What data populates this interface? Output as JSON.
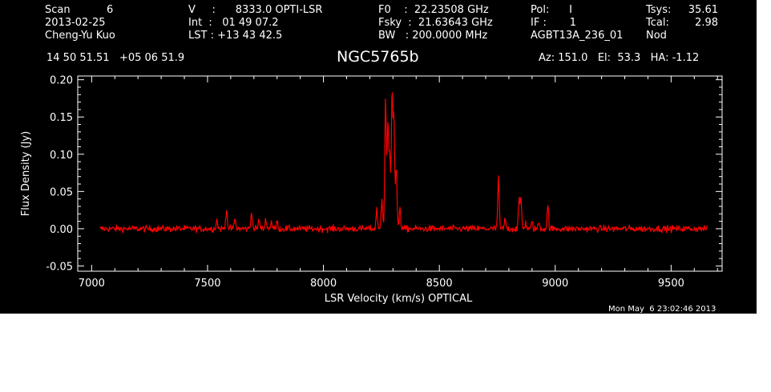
{
  "header": {
    "col1": [
      "Scan           6",
      "2013-02-25",
      "Cheng-Yu Kuo"
    ],
    "col2": [
      "V     :      8333.0 OPTI-LSR",
      "Int  :   01 49 07.2",
      "LST : +13 43 42.5"
    ],
    "col3": [
      "F0    :  22.23508 GHz",
      "Fsky  :  21.63643 GHz",
      "BW   : 200.0000 MHz"
    ],
    "col4": [
      "Pol:      I",
      "IF :       1",
      "AGBT13A_236_01"
    ],
    "col5": [
      "Tsys:",
      "Tcal:",
      "Nod"
    ],
    "col6": [
      "35.61",
      "2.98",
      ""
    ],
    "coords": "14 50 51.51   +05 06 51.9",
    "source": "NGC5765b",
    "azelha": "Az: 151.0   El:  53.3   HA: -1.12",
    "timestamp": "Mon May  6 23:02:46 2013"
  },
  "colors": {
    "background": "#000000",
    "axes": "#ffffff",
    "trace": "#ff0000"
  },
  "chart_data": {
    "type": "line",
    "title": "NGC5765b",
    "xlabel": "LSR Velocity (km/s) OPTICAL",
    "ylabel": "Flux Density (Jy)",
    "xlim": [
      6940,
      9720
    ],
    "ylim": [
      -0.057,
      0.205
    ],
    "xticks": [
      7000,
      7500,
      8000,
      8500,
      9000,
      9500
    ],
    "xtick_labels": [
      "7000",
      "7500",
      "8000",
      "8500",
      "9000",
      "9500"
    ],
    "yticks": [
      -0.05,
      0.0,
      0.05,
      0.1,
      0.15,
      0.2
    ],
    "ytick_labels": [
      "-0.05",
      "0.00",
      "0.05",
      "0.10",
      "0.15",
      "0.20"
    ],
    "grid": false,
    "x_range": [
      7035,
      9655
    ],
    "noise_rms": 0.0022,
    "peaks": [
      {
        "x": 7540,
        "y": 0.012
      },
      {
        "x": 7582,
        "y": 0.027
      },
      {
        "x": 7618,
        "y": 0.013
      },
      {
        "x": 7690,
        "y": 0.023
      },
      {
        "x": 7722,
        "y": 0.012
      },
      {
        "x": 7752,
        "y": 0.013
      },
      {
        "x": 7775,
        "y": 0.01
      },
      {
        "x": 7800,
        "y": 0.01
      },
      {
        "x": 8230,
        "y": 0.025
      },
      {
        "x": 8252,
        "y": 0.04
      },
      {
        "x": 8268,
        "y": 0.175
      },
      {
        "x": 8278,
        "y": 0.142
      },
      {
        "x": 8286,
        "y": 0.1
      },
      {
        "x": 8296,
        "y": 0.183
      },
      {
        "x": 8304,
        "y": 0.145
      },
      {
        "x": 8314,
        "y": 0.08
      },
      {
        "x": 8330,
        "y": 0.03
      },
      {
        "x": 8755,
        "y": 0.067
      },
      {
        "x": 8784,
        "y": 0.012
      },
      {
        "x": 8844,
        "y": 0.035
      },
      {
        "x": 8852,
        "y": 0.04
      },
      {
        "x": 8872,
        "y": 0.008
      },
      {
        "x": 8900,
        "y": 0.008
      },
      {
        "x": 8930,
        "y": 0.008
      },
      {
        "x": 8968,
        "y": 0.03
      }
    ]
  }
}
